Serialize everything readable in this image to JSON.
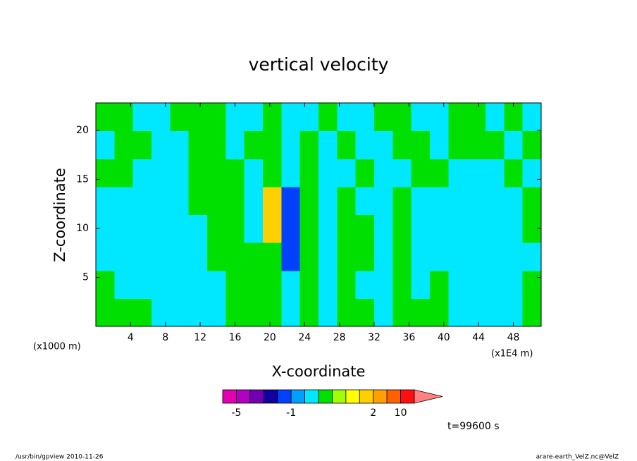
{
  "chart_data": {
    "type": "contour",
    "title": "vertical velocity",
    "xlabel": "X-coordinate",
    "ylabel": "Z-coordinate",
    "xunit": "(x1000 m)",
    "xunit2": "(x1E4 m)",
    "time_label": "t=99600 s",
    "footer_left": "/usr/bin/gpview  2010-11-26",
    "footer_right": "arare-earth_VelZ.nc@VelZ",
    "xlim": [
      0,
      51.2
    ],
    "ylim": [
      0,
      22.8
    ],
    "xticks": [
      4,
      8,
      12,
      16,
      20,
      24,
      28,
      32,
      36,
      40,
      44,
      48
    ],
    "yticks": [
      5,
      10,
      15,
      20
    ],
    "levels": [
      -10,
      -5,
      -3,
      -2,
      -1.5,
      -1,
      -0.5,
      0,
      0.5,
      1,
      1.5,
      2,
      5,
      10,
      20
    ],
    "colors": [
      "#e000b0",
      "#b000c0",
      "#7000b0",
      "#1000a0",
      "#0040ff",
      "#00a0ff",
      "#00e8ff",
      "#00e000",
      "#a0ff00",
      "#ffff00",
      "#ffd000",
      "#ffa000",
      "#ff6000",
      "#ff1010",
      "#ff8080",
      "#ffb8b8"
    ],
    "cbticks": [
      -5,
      -1,
      2,
      10
    ],
    "z": [
      [
        0.2,
        0.2,
        0.2,
        -0.2,
        -0.2,
        -0.2,
        -0.2,
        0.2,
        0.2,
        0.2,
        -0.2,
        0.2,
        -0.2,
        0.2,
        0.2,
        -0.2,
        0.2,
        0.2,
        0.2,
        -0.2,
        -0.2,
        -0.2,
        -0.2,
        0.2
      ],
      [
        0.2,
        -0.2,
        -0.2,
        -0.2,
        -0.2,
        -0.2,
        -0.2,
        0.2,
        0.2,
        0.2,
        -0.2,
        0.2,
        -0.2,
        0.2,
        -0.2,
        -0.2,
        0.2,
        -0.2,
        0.2,
        -0.2,
        -0.2,
        -0.2,
        -0.2,
        0.2
      ],
      [
        -0.2,
        -0.2,
        -0.2,
        -0.2,
        -0.2,
        -0.2,
        0.2,
        0.2,
        0.2,
        0.2,
        -1.2,
        0.2,
        -0.2,
        0.2,
        0.2,
        -0.2,
        0.2,
        -0.2,
        -0.2,
        -0.2,
        -0.2,
        -0.2,
        -0.2,
        -0.2
      ],
      [
        -0.2,
        -0.2,
        -0.2,
        -0.2,
        -0.2,
        -0.2,
        0.2,
        0.2,
        -0.2,
        1.5,
        -1.2,
        0.2,
        -0.2,
        0.2,
        0.2,
        -0.2,
        0.2,
        -0.2,
        -0.2,
        -0.2,
        -0.2,
        -0.2,
        -0.2,
        0.2
      ],
      [
        -0.2,
        -0.2,
        -0.2,
        -0.2,
        -0.2,
        0.2,
        0.2,
        0.2,
        -0.2,
        1.5,
        -1.2,
        0.2,
        -0.2,
        0.2,
        -0.2,
        -0.2,
        0.2,
        -0.2,
        -0.2,
        -0.2,
        -0.2,
        -0.2,
        -0.2,
        0.2
      ],
      [
        0.2,
        0.2,
        -0.2,
        -0.2,
        -0.2,
        0.2,
        0.2,
        0.2,
        -0.2,
        0.2,
        -0.2,
        0.2,
        -0.2,
        -0.2,
        0.2,
        -0.2,
        -0.2,
        0.2,
        0.2,
        -0.2,
        -0.2,
        -0.2,
        0.2,
        -0.2
      ],
      [
        -0.2,
        0.2,
        0.2,
        -0.2,
        -0.2,
        0.2,
        0.2,
        -0.2,
        0.2,
        0.2,
        -0.2,
        0.2,
        -0.2,
        0.2,
        -0.2,
        -0.2,
        0.2,
        0.2,
        -0.2,
        0.2,
        0.2,
        0.2,
        -0.2,
        0.2
      ],
      [
        0.2,
        0.2,
        -0.2,
        -0.2,
        0.2,
        0.2,
        0.2,
        -0.2,
        -0.2,
        0.2,
        -0.2,
        -0.2,
        0.2,
        -0.2,
        -0.2,
        0.2,
        0.2,
        -0.2,
        -0.2,
        0.2,
        0.2,
        -0.2,
        0.2,
        -0.2
      ]
    ]
  }
}
